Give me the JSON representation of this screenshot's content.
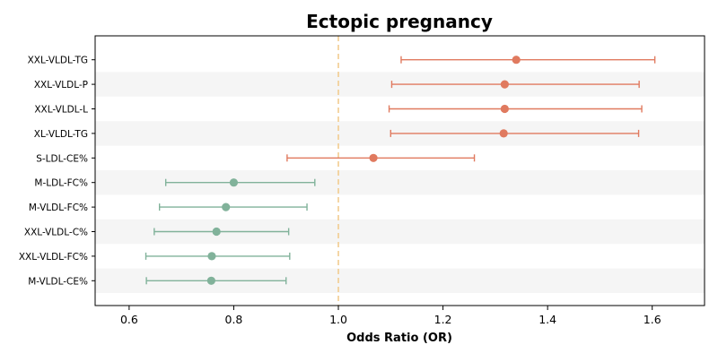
{
  "chart_data": {
    "type": "forest",
    "title": "Ectopic pregnancy",
    "xlabel": "Odds Ratio (OR)",
    "ylabel": "",
    "xlim": [
      0.535,
      1.7
    ],
    "xticks": [
      0.6,
      0.8,
      1.0,
      1.2,
      1.4,
      1.6
    ],
    "xtick_labels": [
      "0.6",
      "0.8",
      "1.0",
      "1.2",
      "1.4",
      "1.6"
    ],
    "reference_line": 1.0,
    "colors": {
      "risk": "#E07A5F",
      "protective": "#81B29A",
      "reference": "#F2CC8F",
      "band": "#F5F5F5"
    },
    "rows": [
      {
        "label": "XXL-VLDL-TG",
        "or": 1.34,
        "lower": 1.12,
        "upper": 1.605,
        "group": "risk"
      },
      {
        "label": "XXL-VLDL-P",
        "or": 1.318,
        "lower": 1.102,
        "upper": 1.575,
        "group": "risk"
      },
      {
        "label": "XXL-VLDL-L",
        "or": 1.318,
        "lower": 1.097,
        "upper": 1.58,
        "group": "risk"
      },
      {
        "label": "XL-VLDL-TG",
        "or": 1.316,
        "lower": 1.1,
        "upper": 1.574,
        "group": "risk"
      },
      {
        "label": "S-LDL-CE%",
        "or": 1.067,
        "lower": 0.902,
        "upper": 1.26,
        "group": "risk"
      },
      {
        "label": "M-LDL-FC%",
        "or": 0.8,
        "lower": 0.67,
        "upper": 0.955,
        "group": "protective"
      },
      {
        "label": "M-VLDL-FC%",
        "or": 0.785,
        "lower": 0.658,
        "upper": 0.94,
        "group": "protective"
      },
      {
        "label": "XXL-VLDL-C%",
        "or": 0.767,
        "lower": 0.648,
        "upper": 0.905,
        "group": "protective"
      },
      {
        "label": "XXL-VLDL-FC%",
        "or": 0.758,
        "lower": 0.632,
        "upper": 0.907,
        "group": "protective"
      },
      {
        "label": "M-VLDL-CE%",
        "or": 0.757,
        "lower": 0.633,
        "upper": 0.9,
        "group": "protective"
      }
    ]
  }
}
